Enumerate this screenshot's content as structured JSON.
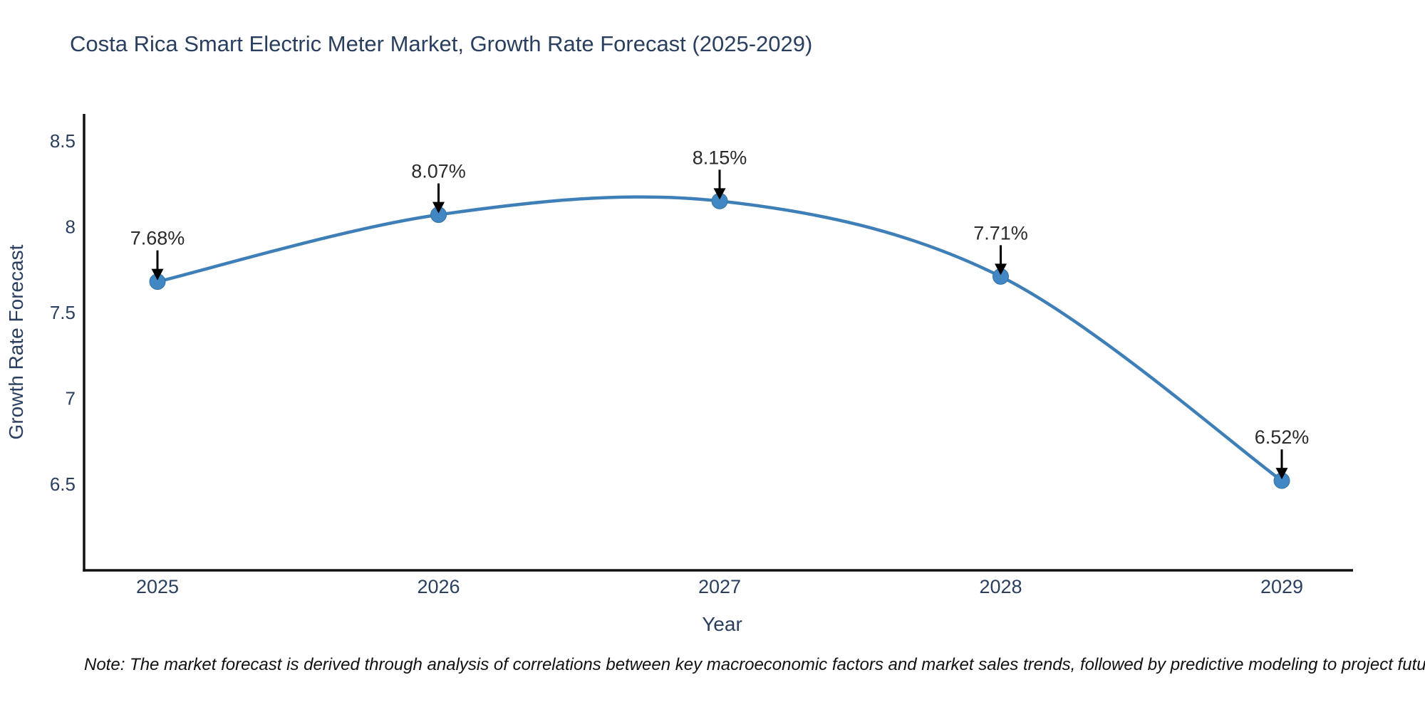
{
  "title": "Costa Rica Smart Electric Meter Market, Growth Rate Forecast (2025-2029)",
  "note": "Note: The market forecast is derived through analysis of correlations between key macroeconomic factors and market sales trends, followed by predictive modeling to project future sales",
  "chart_data": {
    "type": "line",
    "title": "Costa Rica Smart Electric Meter Market, Growth Rate Forecast (2025-2029)",
    "x": [
      2025,
      2026,
      2027,
      2028,
      2029
    ],
    "xtick_labels": [
      "2025",
      "2026",
      "2027",
      "2028",
      "2029"
    ],
    "series": [
      {
        "name": "Growth Rate Forecast",
        "values": [
          7.68,
          8.07,
          8.15,
          7.71,
          6.52
        ],
        "point_labels": [
          "7.68%",
          "8.07%",
          "8.15%",
          "7.71%",
          "6.52%"
        ]
      }
    ],
    "xlabel": "Year",
    "ylabel": "Growth Rate Forecast",
    "yticks": [
      6.5,
      7,
      7.5,
      8,
      8.5
    ],
    "ytick_labels": [
      "6.5",
      "7",
      "7.5",
      "8",
      "8.5"
    ],
    "ylim": [
      5.99,
      8.65
    ],
    "xlim": [
      2024.74,
      2029.26
    ],
    "line_shape": "spline",
    "grid": false,
    "legend": "none",
    "colors": {
      "line": "#3f7fb8",
      "marker_fill": "#4187c4",
      "marker_stroke": "#36749f",
      "axis_line": "#111111",
      "tick_label": "#2a3f5f",
      "axis_title": "#2a3f5f",
      "annotation_text": "#2a2a2a",
      "annotation_arrow": "#000000",
      "chart_title": "#2a3f5f",
      "background": "#ffffff"
    }
  }
}
